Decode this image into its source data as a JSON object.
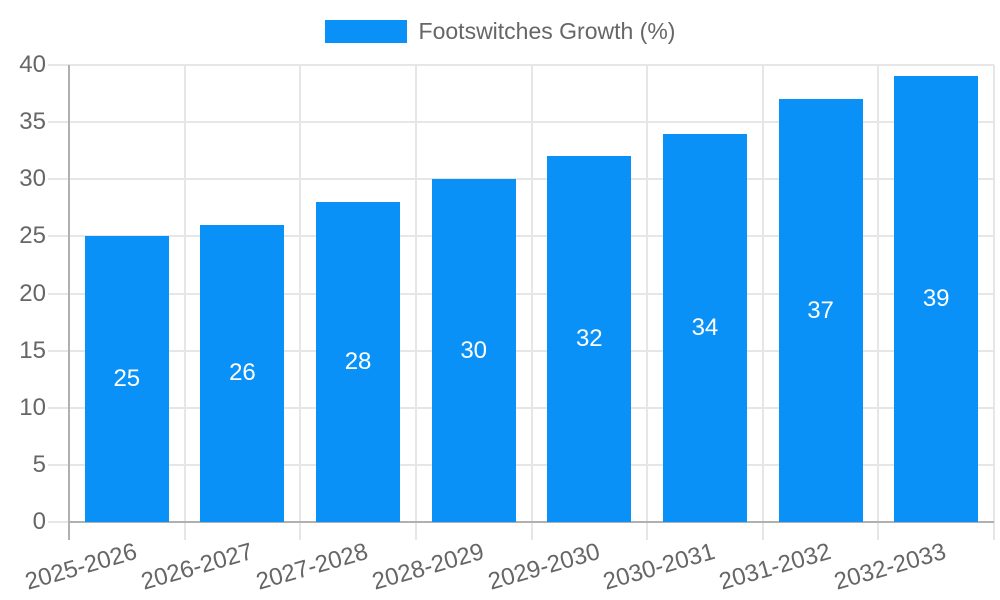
{
  "chart_data": {
    "type": "bar",
    "title": "",
    "legend_label": "Footswitches Growth (%)",
    "legend_position": "top",
    "categories": [
      "2025-2026",
      "2026-2027",
      "2027-2028",
      "2028-2029",
      "2029-2030",
      "2030-2031",
      "2031-2032",
      "2032-2033"
    ],
    "series": [
      {
        "name": "Footswitches Growth (%)",
        "values": [
          25,
          26,
          28,
          30,
          32,
          34,
          37,
          39
        ]
      }
    ],
    "value_labels_shown": true,
    "xlabel": "",
    "ylabel": "",
    "ylim": [
      0,
      40
    ],
    "yticks": [
      0,
      5,
      10,
      15,
      20,
      25,
      30,
      35,
      40
    ],
    "grid": true,
    "colors": {
      "bar": "#0991F8",
      "grid_line": "#e6e6e6",
      "axis_line": "#b0b0b0",
      "tick_text": "#666666",
      "value_label_text": "#ffffff",
      "background": "#ffffff"
    }
  }
}
